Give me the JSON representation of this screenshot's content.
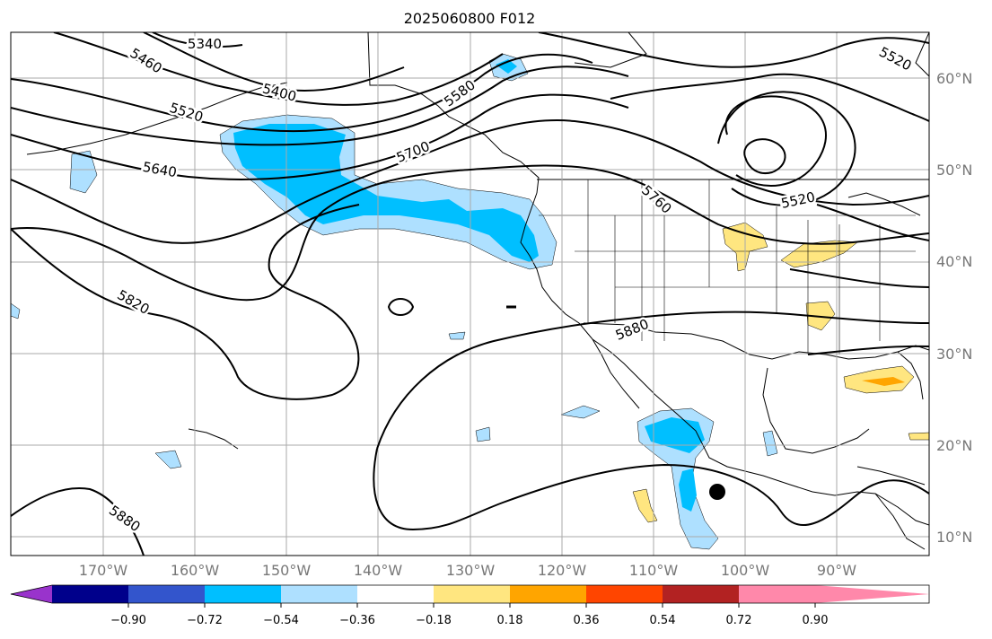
{
  "title": "2025060800 F012",
  "map": {
    "lat_labels": [
      "60°N",
      "50°N",
      "40°N",
      "30°N",
      "20°N",
      "10°N"
    ],
    "lon_labels": [
      "170°W",
      "160°W",
      "150°W",
      "140°W",
      "130°W",
      "120°W",
      "110°W",
      "100°W",
      "90°W"
    ],
    "contour_labels": [
      "5340",
      "5460",
      "5400",
      "5520",
      "5640",
      "5580",
      "5700",
      "5760",
      "5520",
      "5520",
      "5820",
      "5880",
      "5880"
    ],
    "colors": {
      "fill_strong_neg": "#00bfff",
      "fill_weak_neg": "#aee0ff",
      "fill_weak_pos": "#ffe680",
      "fill_mod_pos": "#ffa500",
      "contour": "#000000",
      "grid": "#aaaaaa",
      "land_outline": "#000000"
    },
    "marker": "black-dot"
  },
  "colorbar": {
    "ticks": [
      "−0.90",
      "−0.72",
      "−0.54",
      "−0.36",
      "−0.18",
      "0.18",
      "0.36",
      "0.54",
      "0.72",
      "0.90"
    ],
    "colors": [
      "#9933cc",
      "#00008b",
      "#3355cc",
      "#00bfff",
      "#aee0ff",
      "#ffffff",
      "#ffe680",
      "#ffa500",
      "#ff4500",
      "#b22222",
      "#ff88aa"
    ]
  }
}
